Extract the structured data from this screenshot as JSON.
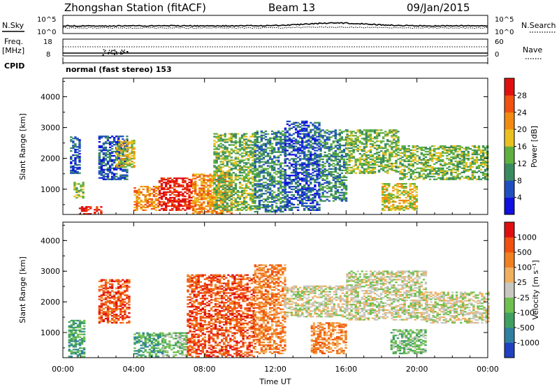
{
  "header": {
    "title": "Zhongshan Station (fitACF)",
    "beam": "Beam 13",
    "date": "09/Jan/2015"
  },
  "top_panels": {
    "nsky_label": "N.Sky",
    "nsky_ticks": [
      "10^5",
      "10^0"
    ],
    "nsearch_label": "N.Search",
    "nsearch_ticks": [
      "10^5",
      "10^0"
    ],
    "freq_label_1": "Freq.",
    "freq_label_2": "[MHz]",
    "freq_ticks": [
      "18",
      "8"
    ],
    "nave_label": "Nave",
    "nave_ticks": [
      "60",
      "0"
    ],
    "cpid_label": "CPID",
    "cpid_value": "normal (fast stereo) 153"
  },
  "chart_data": [
    {
      "type": "heatmap",
      "name": "power",
      "ylabel": "Slant Range [km]",
      "ylim": [
        180,
        4600
      ],
      "y_ticks": [
        "1000",
        "2000",
        "3000",
        "4000"
      ],
      "x_hours": [
        0,
        24
      ],
      "colorbar": {
        "label": "Power [dB]",
        "ticks": [
          "4",
          "8",
          "12",
          "16",
          "20",
          "24",
          "28"
        ],
        "colors": [
          "#1010e0",
          "#2050c0",
          "#3a8a60",
          "#60b040",
          "#e8c020",
          "#f08a10",
          "#f05010",
          "#e01010"
        ]
      },
      "regions": [
        {
          "t0": 0.4,
          "t1": 0.9,
          "r0": 1500,
          "r1": 2700,
          "level": 1
        },
        {
          "t0": 0.6,
          "t1": 1.1,
          "r0": 700,
          "r1": 1200,
          "level": 3
        },
        {
          "t0": 0.9,
          "t1": 2.2,
          "r0": 180,
          "r1": 450,
          "level": 7
        },
        {
          "t0": 2.0,
          "t1": 3.6,
          "r0": 1300,
          "r1": 2700,
          "level": 1
        },
        {
          "t0": 3.0,
          "t1": 4.0,
          "r0": 1700,
          "r1": 2600,
          "level": 4
        },
        {
          "t0": 4.0,
          "t1": 5.4,
          "r0": 300,
          "r1": 1100,
          "level": 5
        },
        {
          "t0": 5.4,
          "t1": 7.3,
          "r0": 300,
          "r1": 1350,
          "level": 7
        },
        {
          "t0": 7.3,
          "t1": 9.5,
          "r0": 200,
          "r1": 1500,
          "level": 5
        },
        {
          "t0": 8.5,
          "t1": 10.8,
          "r0": 300,
          "r1": 2800,
          "level": 3
        },
        {
          "t0": 10.8,
          "t1": 12.5,
          "r0": 250,
          "r1": 2900,
          "level": 2
        },
        {
          "t0": 12.5,
          "t1": 14.5,
          "r0": 300,
          "r1": 3200,
          "level": 1
        },
        {
          "t0": 14.5,
          "t1": 16.0,
          "r0": 600,
          "r1": 2900,
          "level": 2
        },
        {
          "t0": 16.0,
          "t1": 19.0,
          "r0": 1500,
          "r1": 2900,
          "level": 3
        },
        {
          "t0": 18.0,
          "t1": 20.0,
          "r0": 300,
          "r1": 1200,
          "level": 4
        },
        {
          "t0": 19.0,
          "t1": 24.0,
          "r0": 1300,
          "r1": 2400,
          "level": 3
        }
      ]
    },
    {
      "type": "heatmap",
      "name": "velocity",
      "ylabel": "Slant Range [km]",
      "ylim": [
        180,
        4600
      ],
      "y_ticks": [
        "1000",
        "2000",
        "3000",
        "4000"
      ],
      "x_ticks": [
        "00:00",
        "04:00",
        "08:00",
        "12:00",
        "16:00",
        "20:00",
        "00:00"
      ],
      "xlabel": "Time UT",
      "colorbar": {
        "label": "Velocity [m s⁻¹]",
        "ticks": [
          "1000",
          "500",
          "100",
          "25",
          "-25",
          "-100",
          "-500",
          "-1000"
        ],
        "colors": [
          "#2040c0",
          "#3080a0",
          "#40a060",
          "#70c050",
          "#c8c8c0",
          "#f0b060",
          "#f08020",
          "#f05010",
          "#e01010"
        ]
      },
      "regions": [
        {
          "t0": 0.3,
          "t1": 1.2,
          "r0": 200,
          "r1": 1400,
          "level": 2
        },
        {
          "t0": 2.0,
          "t1": 3.8,
          "r0": 1300,
          "r1": 2700,
          "level": 7
        },
        {
          "t0": 4.0,
          "t1": 5.6,
          "r0": 200,
          "r1": 1000,
          "level": 2
        },
        {
          "t0": 5.6,
          "t1": 7.0,
          "r0": 200,
          "r1": 1000,
          "level": 3
        },
        {
          "t0": 7.0,
          "t1": 10.8,
          "r0": 200,
          "r1": 2900,
          "level": 7
        },
        {
          "t0": 10.8,
          "t1": 12.5,
          "r0": 300,
          "r1": 3200,
          "level": 6
        },
        {
          "t0": 12.5,
          "t1": 16.0,
          "r0": 1500,
          "r1": 2500,
          "level": 4
        },
        {
          "t0": 14.0,
          "t1": 16.0,
          "r0": 300,
          "r1": 1300,
          "level": 6
        },
        {
          "t0": 16.0,
          "t1": 20.5,
          "r0": 1400,
          "r1": 3000,
          "level": 4
        },
        {
          "t0": 18.5,
          "t1": 20.5,
          "r0": 300,
          "r1": 1100,
          "level": 3
        },
        {
          "t0": 20.5,
          "t1": 24.0,
          "r0": 1300,
          "r1": 2300,
          "level": 4
        }
      ]
    }
  ]
}
